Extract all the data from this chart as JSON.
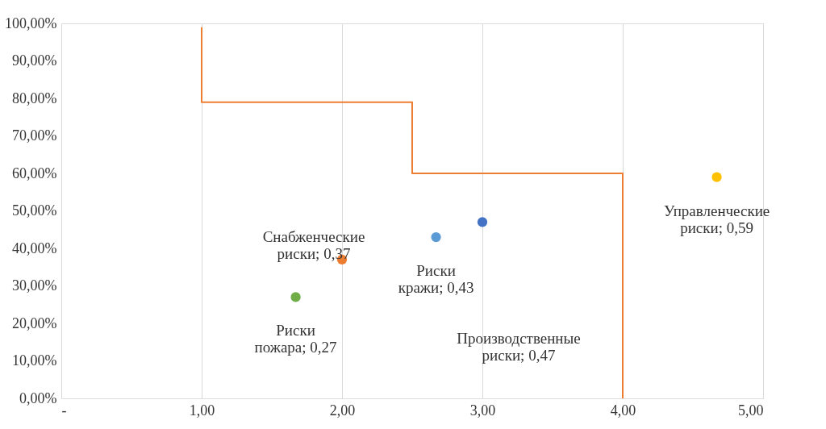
{
  "chart_data": {
    "type": "scatter",
    "xlim": [
      0,
      5
    ],
    "xticks": [
      {
        "value": 0,
        "label": "-"
      },
      {
        "value": 1,
        "label": "1,00"
      },
      {
        "value": 2,
        "label": "2,00"
      },
      {
        "value": 3,
        "label": "3,00"
      },
      {
        "value": 4,
        "label": "4,00"
      },
      {
        "value": 5,
        "label": "5,00"
      }
    ],
    "ylim": [
      0,
      1
    ],
    "yticks": [
      {
        "value": 0,
        "label": "0,00%"
      },
      {
        "value": 0.1,
        "label": "10,00%"
      },
      {
        "value": 0.2,
        "label": "20,00%"
      },
      {
        "value": 0.3,
        "label": "30,00%"
      },
      {
        "value": 0.4,
        "label": "40,00%"
      },
      {
        "value": 0.5,
        "label": "50,00%"
      },
      {
        "value": 0.6,
        "label": "60,00%"
      },
      {
        "value": 0.7,
        "label": "70,00%"
      },
      {
        "value": 0.8,
        "label": "80,00%"
      },
      {
        "value": 0.9,
        "label": "90,00%"
      },
      {
        "value": 1,
        "label": "100,00%"
      }
    ],
    "grid": "x",
    "marker": "circle",
    "series": [
      {
        "name": "Снабженческие риски;",
        "color": "#ed7d31",
        "x": [
          2.0
        ],
        "values": [
          0.37
        ],
        "value_labels": [
          "0,37"
        ]
      },
      {
        "name": "Риски кражи;",
        "color": "#5b9bd5",
        "x": [
          2.67
        ],
        "values": [
          0.43
        ],
        "value_labels": [
          "0,43"
        ]
      },
      {
        "name": "Производственные риски;",
        "color": "#4472c4",
        "x": [
          3.0
        ],
        "values": [
          0.47
        ],
        "value_labels": [
          "0,47"
        ]
      },
      {
        "name": "Управленческие риски;",
        "color": "#ffc000",
        "x": [
          4.67
        ],
        "values": [
          0.59
        ],
        "value_labels": [
          "0,59"
        ]
      },
      {
        "name": "Риски пожара;",
        "color": "#70ad47",
        "x": [
          1.67
        ],
        "values": [
          0.27
        ],
        "value_labels": [
          "0,27"
        ]
      },
      {
        "type": "line",
        "color": "#ed7d31",
        "marker": "none",
        "x": [
          1,
          1,
          2.5,
          2.5,
          4,
          4
        ],
        "values": [
          0.99,
          0.79,
          0.79,
          0.6,
          0.6,
          0
        ]
      }
    ]
  }
}
